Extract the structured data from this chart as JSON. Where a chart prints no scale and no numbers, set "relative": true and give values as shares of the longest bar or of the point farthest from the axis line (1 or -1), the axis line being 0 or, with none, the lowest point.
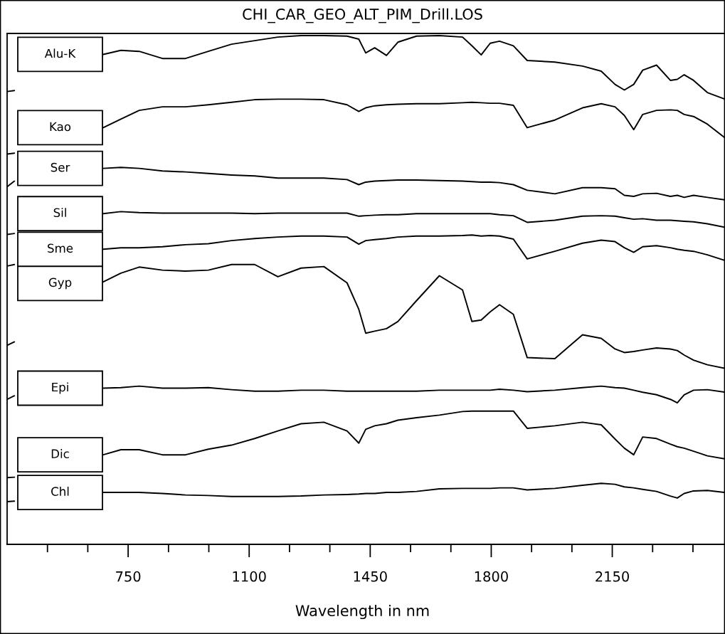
{
  "chart_data": {
    "type": "line",
    "title": "CHI_CAR_GEO_ALT_PIM_Drill.LOS",
    "xlabel": "Wavelength in nm",
    "relative": true,
    "tick_labels": "x",
    "grid": false,
    "legend": false,
    "marker": "none",
    "line_style": "solid",
    "xlim": [
      400,
      2476
    ],
    "xticks": [
      {
        "value": 516.7,
        "label": null
      },
      {
        "value": 633.3,
        "label": null
      },
      750,
      {
        "value": 866.7,
        "label": null
      },
      {
        "value": 983.3,
        "label": null
      },
      1100,
      {
        "value": 1216.7,
        "label": null
      },
      {
        "value": 1333.3,
        "label": null
      },
      1450,
      {
        "value": 1566.7,
        "label": null
      },
      {
        "value": 1683.3,
        "label": null
      },
      1800,
      {
        "value": 1916.7,
        "label": null
      },
      {
        "value": 2033.3,
        "label": null
      },
      2150,
      {
        "value": 2266.7,
        "label": null
      },
      {
        "value": 2383.3,
        "label": null
      }
    ],
    "x": [
      400,
      421,
      550,
      678,
      729,
      782,
      849,
      916,
      982,
      1049,
      1116,
      1183,
      1250,
      1316,
      1383,
      1417,
      1437,
      1463,
      1497,
      1530,
      1584,
      1650,
      1717,
      1744,
      1771,
      1797,
      1824,
      1864,
      1904,
      1984,
      2064,
      2118,
      2158,
      2185,
      2212,
      2238,
      2278,
      2318,
      2338,
      2358,
      2385,
      2425,
      2476
    ],
    "series": [
      {
        "name": "Alu-K",
        "color": "#000000",
        "values": [
          0.89,
          0.892,
          null,
          0.963,
          0.971,
          0.969,
          0.955,
          0.955,
          0.969,
          0.983,
          0.99,
          0.997,
          1.0,
          1.0,
          0.999,
          0.993,
          0.966,
          0.976,
          0.961,
          0.987,
          0.999,
          1.0,
          0.997,
          0.98,
          0.962,
          0.985,
          0.989,
          0.98,
          0.951,
          0.948,
          0.94,
          0.93,
          0.904,
          0.893,
          0.904,
          0.932,
          0.942,
          0.912,
          0.914,
          0.923,
          0.912,
          0.888,
          0.875
        ]
      },
      {
        "name": "Kao",
        "color": "#000000",
        "values": [
          0.767,
          0.769,
          null,
          0.819,
          0.836,
          0.853,
          0.86,
          0.86,
          0.864,
          0.869,
          0.874,
          0.875,
          0.875,
          0.874,
          0.864,
          0.851,
          0.858,
          0.862,
          0.864,
          0.865,
          0.866,
          0.866,
          0.868,
          0.869,
          0.868,
          0.867,
          0.867,
          0.863,
          0.819,
          0.834,
          0.858,
          0.866,
          0.86,
          0.843,
          0.815,
          0.845,
          0.853,
          0.854,
          0.853,
          0.845,
          0.841,
          0.826,
          0.799
        ]
      },
      {
        "name": "Ser",
        "color": "#000000",
        "values": [
          0.703,
          0.714,
          null,
          0.739,
          0.741,
          0.739,
          0.734,
          0.732,
          0.729,
          0.726,
          0.724,
          0.72,
          0.72,
          0.72,
          0.717,
          0.707,
          0.712,
          0.714,
          0.715,
          0.716,
          0.716,
          0.715,
          0.714,
          0.713,
          0.712,
          0.712,
          0.711,
          0.707,
          0.696,
          0.689,
          0.701,
          0.701,
          0.699,
          0.686,
          0.684,
          0.689,
          0.69,
          0.684,
          0.686,
          0.682,
          0.686,
          0.682,
          0.677
        ]
      },
      {
        "name": "Sil",
        "color": "#000000",
        "values": [
          0.609,
          0.611,
          null,
          0.65,
          0.654,
          0.652,
          0.651,
          0.651,
          0.651,
          0.651,
          0.65,
          0.651,
          0.651,
          0.651,
          0.651,
          0.645,
          0.646,
          0.647,
          0.648,
          0.648,
          0.65,
          0.65,
          0.65,
          0.65,
          0.65,
          0.65,
          0.648,
          0.646,
          0.633,
          0.637,
          0.645,
          0.646,
          0.645,
          0.642,
          0.639,
          0.64,
          0.637,
          0.637,
          0.636,
          0.635,
          0.634,
          0.63,
          0.623
        ]
      },
      {
        "name": "Sme",
        "color": "#000000",
        "values": [
          0.547,
          0.55,
          null,
          0.58,
          0.583,
          0.583,
          0.585,
          0.589,
          0.591,
          0.597,
          0.601,
          0.604,
          0.606,
          0.606,
          0.604,
          0.59,
          0.597,
          0.599,
          0.601,
          0.604,
          0.606,
          0.606,
          0.607,
          0.608,
          0.606,
          0.607,
          0.606,
          0.6,
          0.561,
          0.576,
          0.592,
          0.598,
          0.595,
          0.583,
          0.574,
          0.585,
          0.587,
          0.583,
          0.58,
          0.578,
          0.576,
          0.569,
          0.558
        ]
      },
      {
        "name": "Gyp",
        "color": "#000000",
        "values": [
          0.391,
          0.398,
          null,
          0.516,
          0.533,
          0.545,
          0.539,
          0.537,
          0.539,
          0.55,
          0.55,
          0.526,
          0.543,
          0.546,
          0.514,
          0.462,
          0.415,
          0.419,
          0.424,
          0.438,
          0.479,
          0.528,
          0.5,
          0.438,
          0.441,
          0.457,
          0.471,
          0.452,
          0.367,
          0.365,
          0.412,
          0.405,
          0.384,
          0.377,
          0.379,
          0.382,
          0.386,
          0.384,
          0.381,
          0.372,
          0.362,
          0.353,
          0.346
        ]
      },
      {
        "name": "Epi",
        "color": "#000000",
        "values": [
          0.285,
          0.292,
          null,
          0.307,
          0.308,
          0.311,
          0.307,
          0.307,
          0.308,
          0.304,
          0.301,
          0.301,
          0.303,
          0.303,
          0.301,
          0.301,
          0.301,
          0.301,
          0.301,
          0.301,
          0.301,
          0.303,
          0.303,
          0.303,
          0.303,
          0.303,
          0.305,
          0.303,
          0.3,
          0.303,
          0.308,
          0.311,
          0.308,
          0.307,
          0.303,
          0.299,
          0.294,
          0.285,
          0.278,
          0.294,
          0.303,
          0.304,
          0.299
        ]
      },
      {
        "name": "Dic",
        "color": "#000000",
        "values": [
          0.131,
          0.132,
          null,
          0.176,
          0.186,
          0.186,
          0.176,
          0.176,
          0.187,
          0.195,
          0.208,
          0.223,
          0.237,
          0.24,
          0.223,
          0.199,
          0.226,
          0.233,
          0.237,
          0.244,
          0.249,
          0.254,
          0.261,
          0.262,
          0.262,
          0.262,
          0.262,
          0.262,
          0.228,
          0.233,
          0.24,
          0.235,
          0.207,
          0.189,
          0.176,
          0.211,
          0.208,
          0.197,
          0.192,
          0.189,
          0.183,
          0.174,
          0.168
        ]
      },
      {
        "name": "Chl",
        "color": "#000000",
        "values": [
          0.084,
          0.085,
          null,
          0.102,
          0.102,
          0.102,
          0.1,
          0.097,
          0.096,
          0.094,
          0.094,
          0.094,
          0.095,
          0.097,
          0.098,
          0.099,
          0.1,
          0.1,
          0.102,
          0.102,
          0.104,
          0.109,
          0.11,
          0.11,
          0.11,
          0.11,
          0.111,
          0.111,
          0.107,
          0.11,
          0.116,
          0.12,
          0.118,
          0.113,
          0.111,
          0.108,
          0.104,
          0.095,
          0.091,
          0.1,
          0.105,
          0.106,
          0.102
        ]
      }
    ]
  }
}
